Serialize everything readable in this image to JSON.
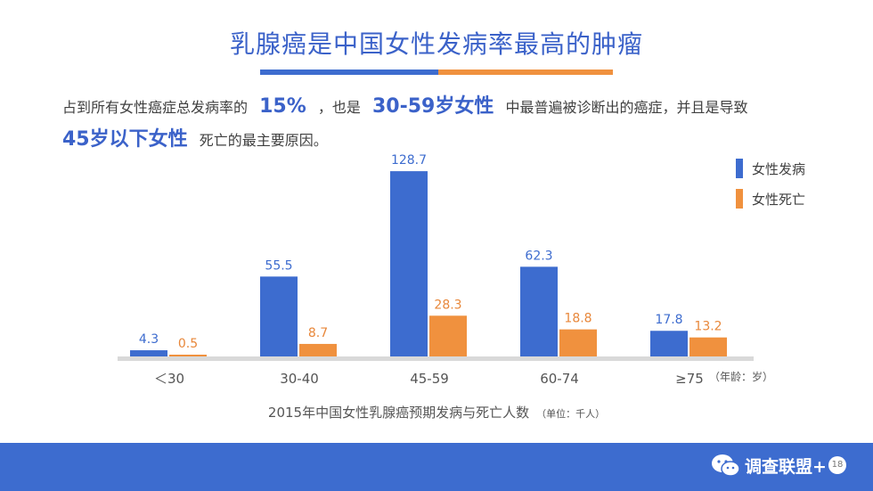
{
  "title": "乳腺癌是中国女性发病率最高的肿瘤",
  "intro": {
    "p1": "占到所有女性癌症总发病率的",
    "hl1": "15%",
    "p2": "，也是",
    "hl2": "30-59岁女性",
    "p3": "中最普遍被诊断出的癌症，并且是导致",
    "hl3": "45岁以下女性",
    "p4": "死亡的最主要原因。"
  },
  "unit_note": "（年龄：岁）",
  "caption": {
    "main": "2015年中国女性乳腺癌预期发病与死亡人数",
    "unit": "（单位：千人）"
  },
  "brand": "调查联盟+",
  "page_number": "18",
  "colors": {
    "incidence": "#3d6ccf",
    "death": "#f0913e",
    "title": "#3b62c9"
  },
  "chart_data": {
    "type": "bar",
    "categories": [
      "＜30",
      "30-40",
      "45-59",
      "60-74",
      "≥75"
    ],
    "series": [
      {
        "name": "女性发病",
        "values": [
          4.3,
          55.5,
          128.7,
          62.3,
          17.8
        ],
        "labels": [
          "4.3",
          "55.5",
          "128.7",
          "62.3",
          "17.8"
        ]
      },
      {
        "name": "女性死亡",
        "values": [
          0.5,
          8.7,
          28.3,
          18.8,
          13.2
        ],
        "labels": [
          "0.5",
          "8.7",
          "28.3",
          "18.8",
          "13.2"
        ]
      }
    ],
    "ylim": [
      0,
      130
    ],
    "grid": false,
    "legend": "top-right"
  }
}
